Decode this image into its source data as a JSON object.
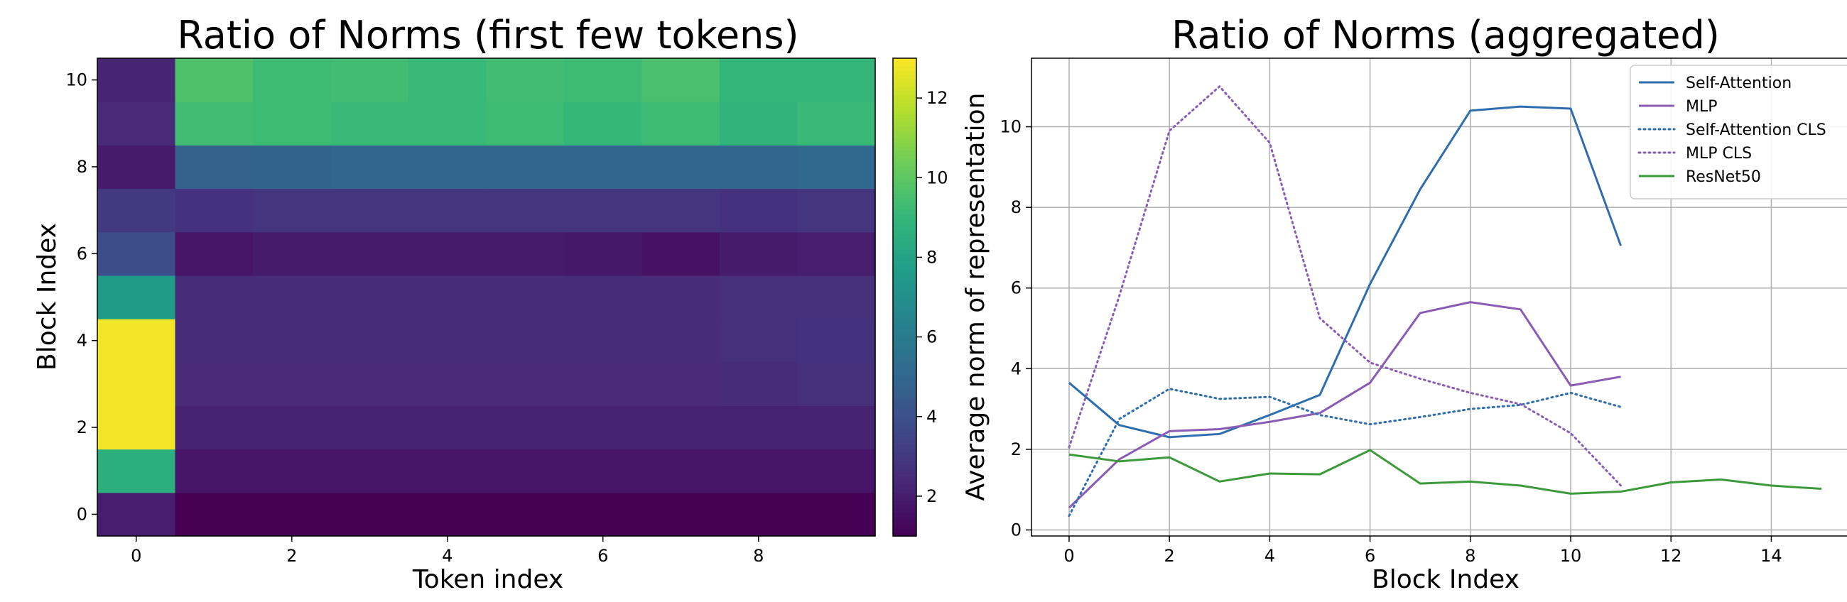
{
  "chart_data": [
    {
      "type": "heatmap",
      "title": "Ratio of Norms (first few tokens)",
      "xlabel": "Token index",
      "ylabel": "Block Index",
      "x_ticks": [
        0,
        2,
        4,
        6,
        8
      ],
      "y_ticks": [
        0,
        2,
        4,
        6,
        8,
        10
      ],
      "colorbar": {
        "colormap": "viridis",
        "range": [
          1,
          13
        ],
        "ticks": [
          2,
          4,
          6,
          8,
          10,
          12
        ]
      },
      "row_order": "bottom-to-top (block 0 first)",
      "values": [
        [
          2.0,
          1.0,
          1.0,
          1.0,
          1.0,
          1.0,
          1.0,
          1.0,
          1.0,
          1.0
        ],
        [
          8.5,
          1.7,
          1.7,
          1.7,
          1.7,
          1.7,
          1.7,
          1.7,
          1.7,
          1.7
        ],
        [
          12.8,
          2.1,
          2.1,
          2.1,
          2.1,
          2.1,
          2.1,
          2.1,
          2.1,
          2.1
        ],
        [
          12.8,
          2.4,
          2.4,
          2.4,
          2.4,
          2.4,
          2.4,
          2.4,
          2.5,
          2.6
        ],
        [
          12.8,
          2.5,
          2.5,
          2.5,
          2.5,
          2.5,
          2.5,
          2.5,
          2.6,
          2.7
        ],
        [
          7.5,
          2.5,
          2.5,
          2.5,
          2.5,
          2.5,
          2.5,
          2.5,
          2.6,
          2.6
        ],
        [
          3.8,
          1.7,
          1.9,
          1.9,
          1.9,
          1.9,
          1.8,
          1.6,
          1.9,
          2.0
        ],
        [
          3.0,
          2.7,
          2.8,
          2.8,
          2.8,
          2.8,
          2.8,
          2.8,
          2.7,
          2.8
        ],
        [
          1.9,
          4.7,
          4.8,
          4.9,
          4.9,
          4.9,
          4.9,
          4.9,
          4.9,
          5.0
        ],
        [
          2.4,
          9.3,
          9.2,
          9.1,
          9.1,
          9.2,
          9.0,
          9.2,
          8.8,
          9.1
        ],
        [
          2.2,
          9.6,
          9.2,
          9.3,
          9.1,
          9.3,
          9.2,
          9.5,
          8.9,
          8.9
        ]
      ]
    },
    {
      "type": "line",
      "title": "Ratio of Norms (aggregated)",
      "xlabel": "Block Index",
      "ylabel": "Average norm of representation",
      "xlim": [
        -0.75,
        15.75
      ],
      "ylim": [
        -0.15,
        11.7
      ],
      "x_ticks": [
        0,
        2,
        4,
        6,
        8,
        10,
        12,
        14
      ],
      "y_ticks": [
        0,
        2,
        4,
        6,
        8,
        10
      ],
      "grid": true,
      "legend_position": "top-right",
      "series": [
        {
          "name": "Self-Attention",
          "color": "#2f6eae",
          "style": "solid",
          "x": [
            0,
            1,
            2,
            3,
            4,
            5,
            6,
            7,
            8,
            9,
            10,
            11
          ],
          "values": [
            3.65,
            2.6,
            2.3,
            2.38,
            2.85,
            3.35,
            6.1,
            8.45,
            10.4,
            10.5,
            10.45,
            7.05
          ]
        },
        {
          "name": "MLP",
          "color": "#8a5cb6",
          "style": "solid",
          "x": [
            0,
            1,
            2,
            3,
            4,
            5,
            6,
            7,
            8,
            9,
            10,
            11
          ],
          "values": [
            0.55,
            1.75,
            2.45,
            2.5,
            2.68,
            2.9,
            3.65,
            5.38,
            5.65,
            5.47,
            3.58,
            3.8
          ]
        },
        {
          "name": "Self-Attention CLS",
          "color": "#2f6eae",
          "style": "dotted",
          "x": [
            0,
            1,
            2,
            3,
            4,
            5,
            6,
            7,
            8,
            9,
            10,
            11
          ],
          "values": [
            0.35,
            2.75,
            3.5,
            3.25,
            3.3,
            2.85,
            2.62,
            2.8,
            3.0,
            3.1,
            3.4,
            3.05
          ]
        },
        {
          "name": "MLP CLS",
          "color": "#8a5cb6",
          "style": "dotted",
          "x": [
            0,
            1,
            2,
            3,
            4,
            5,
            6,
            7,
            8,
            9,
            10,
            11
          ],
          "values": [
            2.05,
            5.8,
            9.9,
            11.0,
            9.6,
            5.25,
            4.15,
            3.75,
            3.4,
            3.12,
            2.4,
            1.1
          ]
        },
        {
          "name": "ResNet50",
          "color": "#3d9a3a",
          "style": "solid",
          "x": [
            0,
            1,
            2,
            3,
            4,
            5,
            6,
            7,
            8,
            9,
            10,
            11,
            12,
            13,
            14,
            15
          ],
          "values": [
            1.87,
            1.7,
            1.8,
            1.2,
            1.4,
            1.38,
            1.98,
            1.15,
            1.2,
            1.1,
            0.9,
            0.95,
            1.18,
            1.25,
            1.1,
            1.02
          ]
        }
      ]
    }
  ]
}
